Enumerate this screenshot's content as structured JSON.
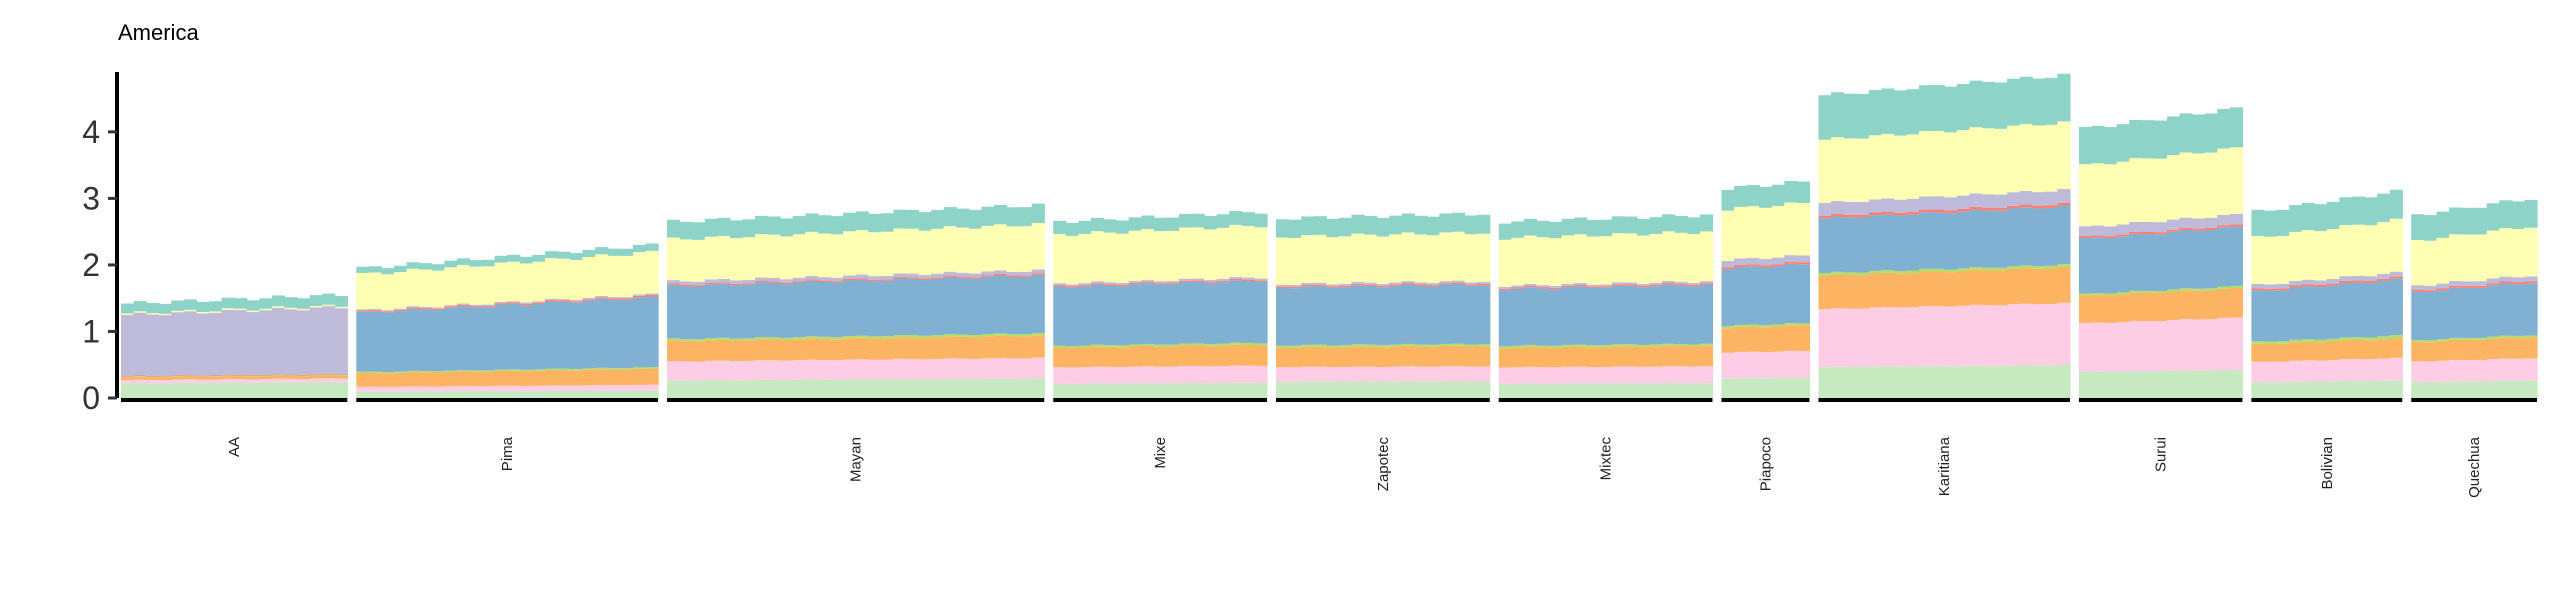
{
  "chart_data": {
    "type": "bar",
    "title": "America",
    "xlabel": "",
    "ylabel": "",
    "ylim": [
      0,
      4.9
    ],
    "yticks": [
      0,
      1,
      2,
      3,
      4
    ],
    "grid": false,
    "legend": "none",
    "component_colors": [
      "#c7e9c0",
      "#fccde5",
      "#fdb462",
      "#b3de69",
      "#80b1d3",
      "#fb8072",
      "#bebada",
      "#ffffb3",
      "#8dd3c7"
    ],
    "populations": [
      {
        "name": "AA",
        "n": 18,
        "totals_start": 1.42,
        "totals_end": 1.55,
        "components": [
          0.22,
          0.05,
          0.04,
          0.01,
          0.0,
          0.01,
          0.92,
          0.02,
          0.15
        ]
      },
      {
        "name": "Pima",
        "n": 24,
        "totals_start": 1.95,
        "totals_end": 2.3,
        "components": [
          0.1,
          0.08,
          0.22,
          0.02,
          0.96,
          0.02,
          0.02,
          0.58,
          0.1
        ]
      },
      {
        "name": "Mayan",
        "n": 30,
        "totals_start": 2.65,
        "totals_end": 2.9,
        "components": [
          0.26,
          0.28,
          0.3,
          0.03,
          0.78,
          0.02,
          0.05,
          0.62,
          0.26
        ]
      },
      {
        "name": "Mixe",
        "n": 17,
        "totals_start": 2.65,
        "totals_end": 2.8,
        "components": [
          0.22,
          0.25,
          0.3,
          0.03,
          0.9,
          0.02,
          0.03,
          0.75,
          0.2
        ]
      },
      {
        "name": "Zapotec",
        "n": 17,
        "totals_start": 2.7,
        "totals_end": 2.77,
        "components": [
          0.25,
          0.22,
          0.3,
          0.03,
          0.88,
          0.02,
          0.03,
          0.72,
          0.28
        ]
      },
      {
        "name": "Mixtec",
        "n": 17,
        "totals_start": 2.65,
        "totals_end": 2.75,
        "components": [
          0.22,
          0.25,
          0.3,
          0.03,
          0.87,
          0.02,
          0.03,
          0.73,
          0.25
        ]
      },
      {
        "name": "Piapoco",
        "n": 7,
        "totals_start": 3.15,
        "totals_end": 3.25,
        "components": [
          0.3,
          0.4,
          0.38,
          0.03,
          0.88,
          0.03,
          0.1,
          0.78,
          0.32
        ]
      },
      {
        "name": "Karitiana",
        "n": 20,
        "totals_start": 4.55,
        "totals_end": 4.85,
        "components": [
          0.48,
          0.9,
          0.52,
          0.04,
          0.85,
          0.04,
          0.2,
          0.98,
          0.69
        ]
      },
      {
        "name": "Surui",
        "n": 13,
        "totals_start": 4.05,
        "totals_end": 4.35,
        "components": [
          0.4,
          0.75,
          0.42,
          0.03,
          0.85,
          0.03,
          0.15,
          0.95,
          0.57
        ]
      },
      {
        "name": "Bolivian",
        "n": 12,
        "totals_start": 2.8,
        "totals_end": 3.1,
        "components": [
          0.25,
          0.32,
          0.28,
          0.04,
          0.8,
          0.03,
          0.07,
          0.75,
          0.41
        ]
      },
      {
        "name": "Quechua",
        "n": 10,
        "totals_start": 2.75,
        "totals_end": 3.0,
        "components": [
          0.25,
          0.32,
          0.3,
          0.03,
          0.75,
          0.03,
          0.07,
          0.7,
          0.4
        ]
      }
    ]
  }
}
